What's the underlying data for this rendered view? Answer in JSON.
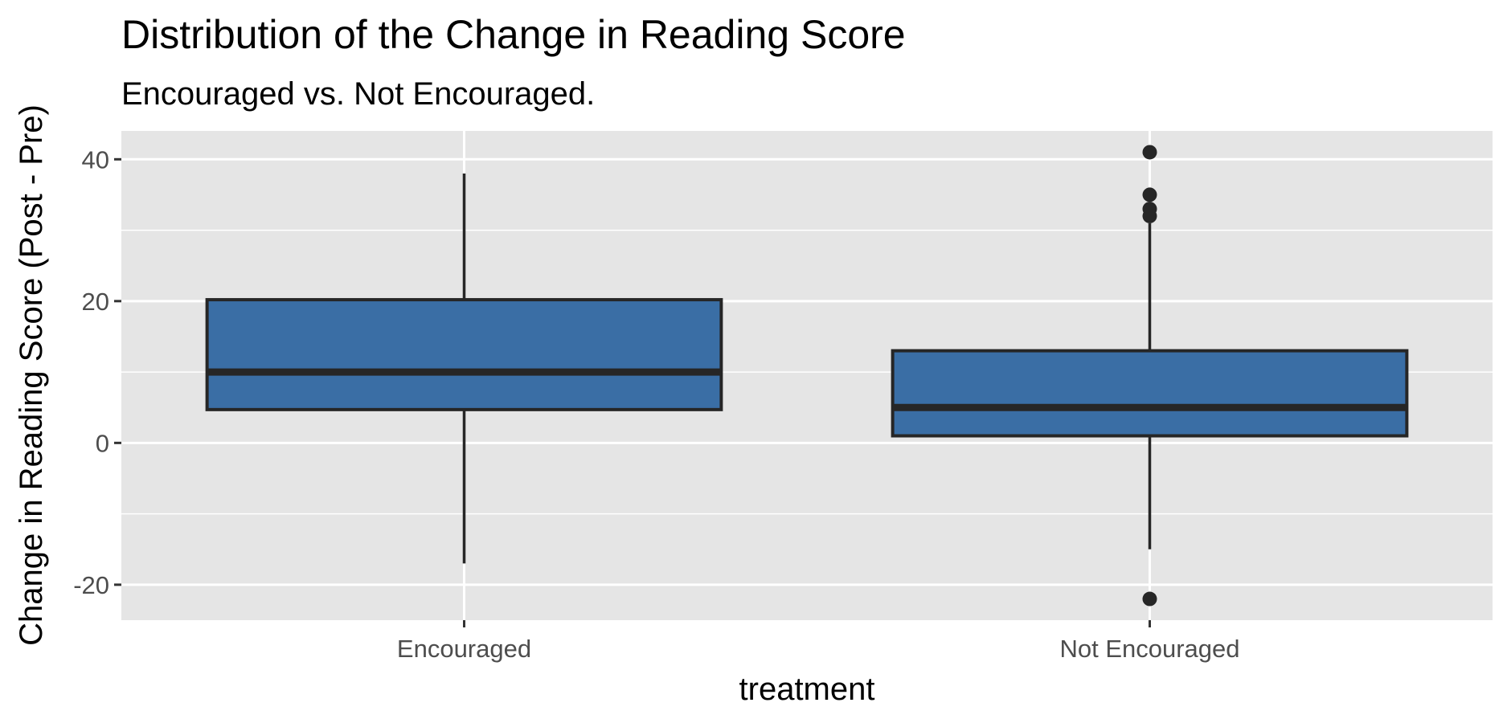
{
  "chart_data": {
    "type": "box",
    "title": "Distribution of the Change in Reading Score",
    "subtitle": "Encouraged vs. Not Encouraged.",
    "xlabel": "treatment",
    "ylabel": "Change in Reading Score (Post - Pre)",
    "ylim": [
      -25,
      44
    ],
    "y_ticks": [
      -20,
      0,
      20,
      40
    ],
    "y_tick_labels": [
      "-20",
      "0",
      "20",
      "40"
    ],
    "y_minor_gridlines": [
      -10,
      10,
      30
    ],
    "categories": [
      "Encouraged",
      "Not Encouraged"
    ],
    "boxes": [
      {
        "category": "Encouraged",
        "whisker_low": -17,
        "q1": 4.7,
        "median": 10,
        "q3": 20.2,
        "whisker_high": 38,
        "outliers": []
      },
      {
        "category": "Not Encouraged",
        "whisker_low": -15,
        "q1": 1,
        "median": 5,
        "q3": 13,
        "whisker_high": 31,
        "outliers": [
          41,
          35,
          33,
          32,
          -22
        ]
      }
    ],
    "grid": true,
    "legend": "none"
  },
  "colors": {
    "panel_background": "#e5e5e5",
    "grid": "#ffffff",
    "box_fill": "#3a6ea5",
    "box_line": "#262626",
    "tick_text": "#4d4d4d",
    "title_text": "#000000"
  }
}
